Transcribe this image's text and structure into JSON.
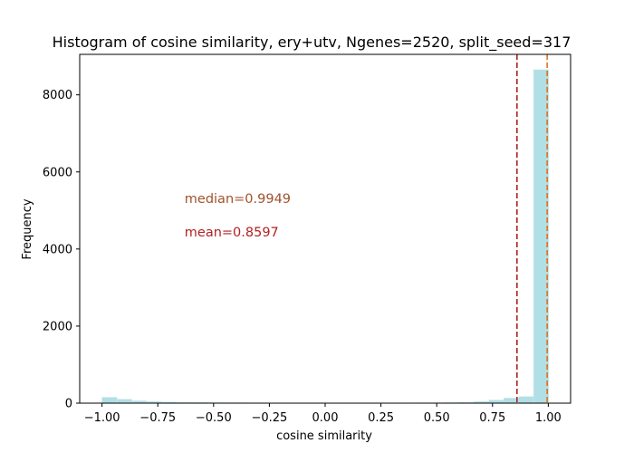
{
  "chart_data": {
    "type": "bar",
    "title": "Histogram of cosine similarity, ery+utv, Ngenes=2520, split_seed=317",
    "xlabel": "cosine similarity",
    "ylabel": "Frequency",
    "xlim": [
      -1.1,
      1.1
    ],
    "ylim": [
      0,
      9050
    ],
    "xticks": [
      -1.0,
      -0.75,
      -0.5,
      -0.25,
      0.0,
      0.25,
      0.5,
      0.75,
      1.0
    ],
    "xtick_labels": [
      "−1.00",
      "−0.75",
      "−0.50",
      "−0.25",
      "0.00",
      "0.25",
      "0.50",
      "0.75",
      "1.00"
    ],
    "yticks": [
      0,
      2000,
      4000,
      6000,
      8000
    ],
    "ytick_labels": [
      "0",
      "2000",
      "4000",
      "6000",
      "8000"
    ],
    "bins": {
      "start": -1.0,
      "width": 0.0667,
      "counts": [
        150,
        100,
        60,
        40,
        30,
        20,
        15,
        12,
        10,
        8,
        6,
        5,
        4,
        4,
        3,
        3,
        3,
        3,
        3,
        4,
        5,
        6,
        8,
        12,
        20,
        40,
        80,
        130,
        170,
        8650
      ]
    },
    "bar_color": "#b0dfe5",
    "lines": [
      {
        "x": 0.8597,
        "color": "#b22222",
        "style": "dashed"
      },
      {
        "x": 0.9949,
        "color": "#e07020",
        "style": "dashed"
      }
    ],
    "annotations": [
      {
        "text": "median=0.9949",
        "x": -0.63,
        "y": 5200,
        "color": "#a0522d"
      },
      {
        "text": "mean=0.8597",
        "x": -0.63,
        "y": 4330,
        "color": "#b22222"
      }
    ],
    "grid": false
  }
}
